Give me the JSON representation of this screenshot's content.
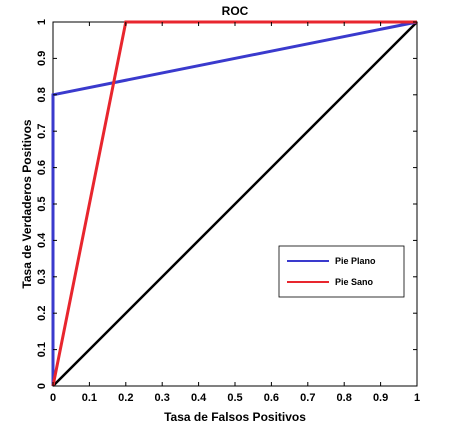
{
  "chart_data": {
    "type": "line",
    "title": "ROC",
    "xlabel": "Tasa de Falsos Positivos",
    "ylabel": "Tasa de Verdaderos Positivos",
    "xlim": [
      0,
      1
    ],
    "ylim": [
      0,
      1
    ],
    "x_ticks": [
      "0",
      "0.1",
      "0.2",
      "0.3",
      "0.4",
      "0.5",
      "0.6",
      "0.7",
      "0.8",
      "0.9",
      "1"
    ],
    "y_ticks": [
      "0",
      "0.1",
      "0.2",
      "0.3",
      "0.4",
      "0.5",
      "0.6",
      "0.7",
      "0.8",
      "0.9",
      "1"
    ],
    "grid": false,
    "legend_position": "center-right",
    "series": [
      {
        "name": "Pie Plano",
        "color": "#3a3acd",
        "points": [
          [
            0,
            0
          ],
          [
            0,
            0.8
          ],
          [
            1,
            1
          ]
        ]
      },
      {
        "name": "Pie Sano",
        "color": "#e8262e",
        "points": [
          [
            0,
            0
          ],
          [
            0.2,
            1
          ],
          [
            1,
            1
          ]
        ]
      }
    ],
    "reference_line": {
      "color": "#000000",
      "points": [
        [
          0,
          0
        ],
        [
          1,
          1
        ]
      ]
    }
  }
}
